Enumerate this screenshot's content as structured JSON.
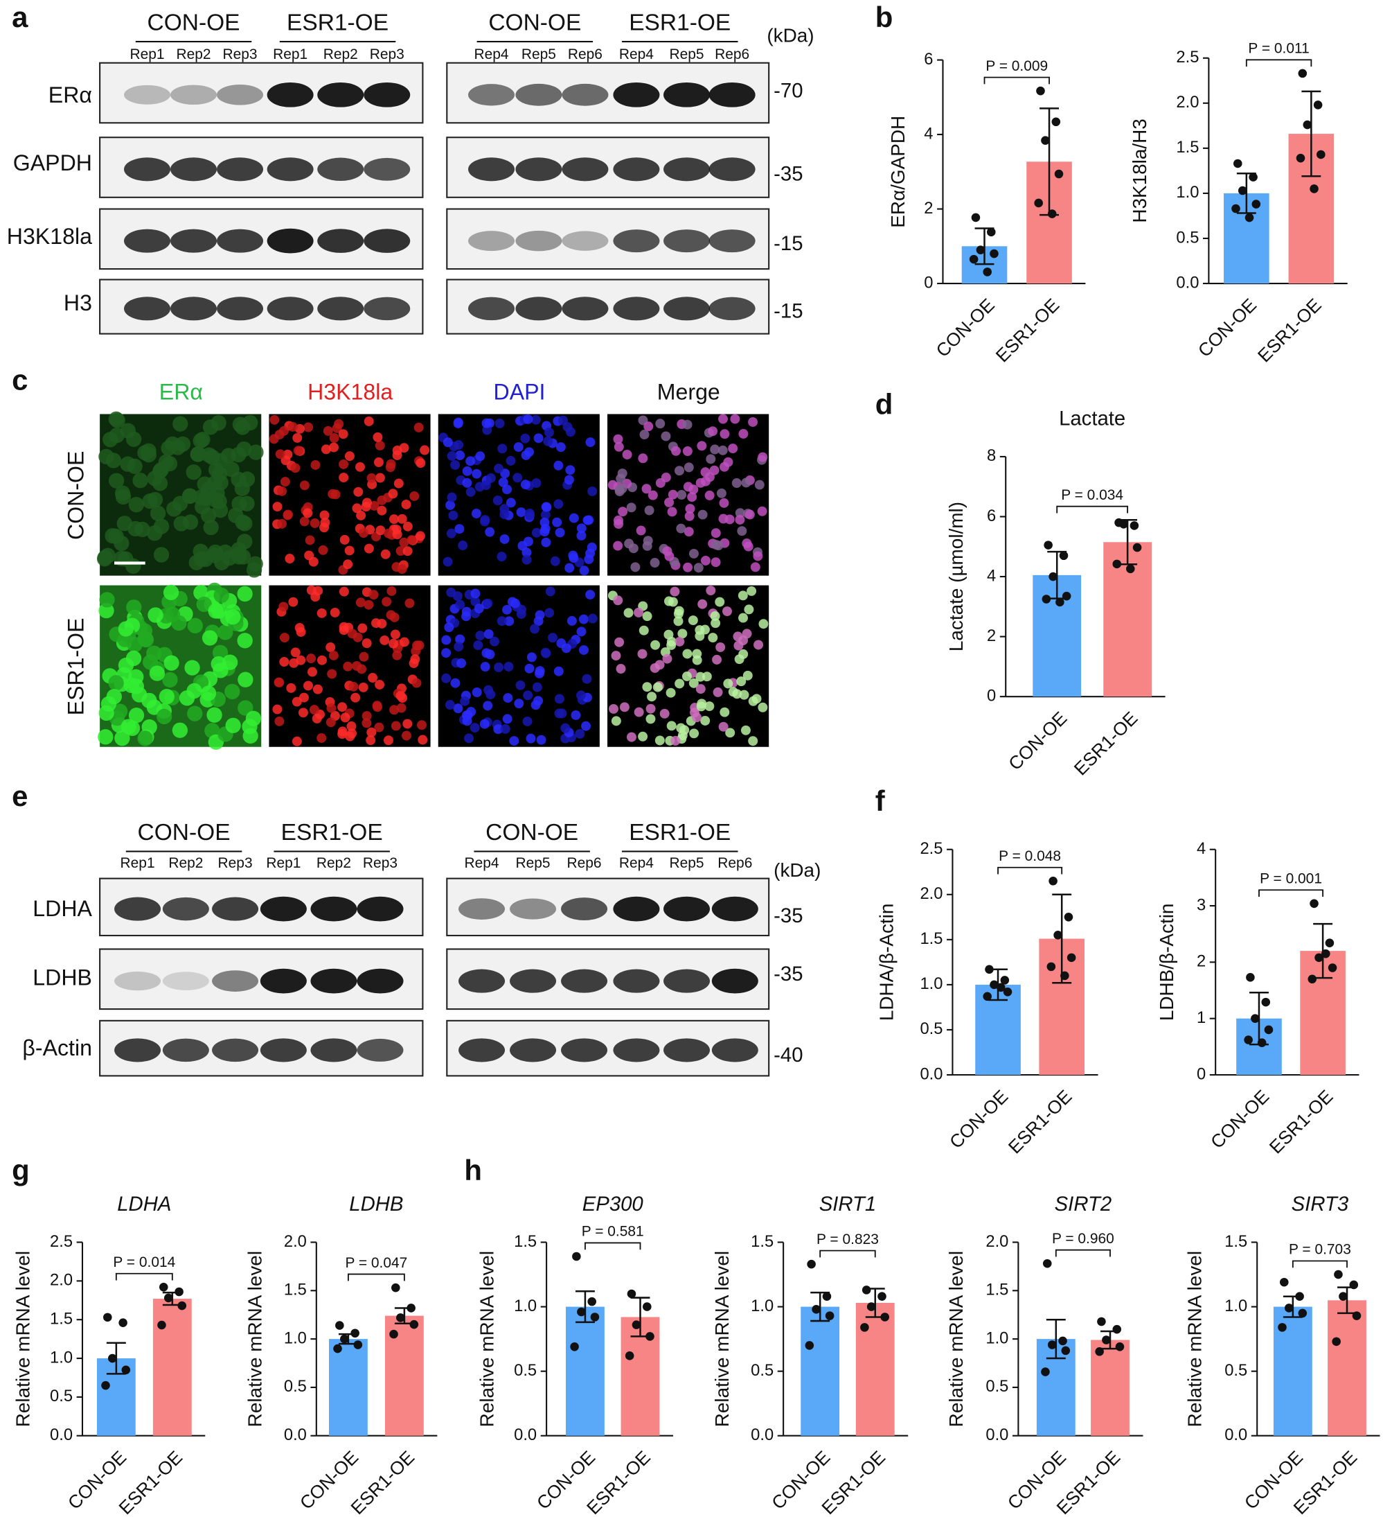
{
  "figure": {
    "panel_labels": [
      "a",
      "b",
      "c",
      "d",
      "e",
      "f",
      "g",
      "h"
    ],
    "blot_a": {
      "groups": [
        "CON-OE",
        "ESR1-OE",
        "CON-OE",
        "ESR1-OE"
      ],
      "lanes": [
        "Rep1",
        "Rep2",
        "Rep3",
        "Rep1",
        "Rep2",
        "Rep3",
        "Rep4",
        "Rep5",
        "Rep6",
        "Rep4",
        "Rep5",
        "Rep6"
      ],
      "unit": "(kDa)",
      "proteins": [
        "ERα",
        "GAPDH",
        "H3K18la",
        "H3"
      ],
      "markers": [
        "-70",
        "-35",
        "-15",
        "-15"
      ]
    },
    "blot_e": {
      "groups": [
        "CON-OE",
        "ESR1-OE",
        "CON-OE",
        "ESR1-OE"
      ],
      "lanes": [
        "Rep1",
        "Rep2",
        "Rep3",
        "Rep1",
        "Rep2",
        "Rep3",
        "Rep4",
        "Rep5",
        "Rep6",
        "Rep4",
        "Rep5",
        "Rep6"
      ],
      "unit": "(kDa)",
      "proteins": [
        "LDHA",
        "LDHB",
        "β-Actin"
      ],
      "markers": [
        "-35",
        "-35",
        "-40"
      ]
    },
    "if_panel": {
      "channels": [
        "ERα",
        "H3K18la",
        "DAPI",
        "Merge"
      ],
      "conditions": [
        "CON-OE",
        "ESR1-OE"
      ]
    }
  },
  "chart_data": [
    {
      "type": "bar",
      "ylabel": "ERα/GAPDH",
      "annotation": "P = 0.009",
      "categories": [
        "CON-OE",
        "ESR1-OE"
      ],
      "colors": [
        "#5aa8f8",
        "#f78585"
      ],
      "values": [
        1.0,
        3.27
      ],
      "errors": [
        0.48,
        1.43
      ],
      "points": [
        [
          1.77,
          1.38,
          0.9,
          0.8,
          0.65,
          0.31
        ],
        [
          5.17,
          4.34,
          3.84,
          2.94,
          2.16,
          1.87
        ]
      ],
      "ylim": [
        0,
        6
      ],
      "yticks": [
        0,
        2,
        4,
        6
      ]
    },
    {
      "type": "bar",
      "ylabel": "H3K18la/H3",
      "annotation": "P = 0.011",
      "categories": [
        "CON-OE",
        "ESR1-OE"
      ],
      "colors": [
        "#5aa8f8",
        "#f78585"
      ],
      "values": [
        1.0,
        1.66
      ],
      "errors": [
        0.22,
        0.47
      ],
      "points": [
        [
          1.33,
          1.18,
          1.03,
          0.88,
          0.83,
          0.73
        ],
        [
          2.33,
          1.98,
          1.76,
          1.43,
          1.39,
          1.05
        ]
      ],
      "ylim": [
        0,
        2.5
      ],
      "yticks": [
        {
          "value": 0,
          "label": "0.0"
        },
        0.5,
        {
          "value": 1,
          "label": "1.0"
        },
        1.5,
        {
          "value": 2,
          "label": "2.0"
        },
        2.5
      ]
    },
    {
      "type": "bar",
      "title": "Lactate",
      "ylabel": "Lactate (µmol/ml)",
      "annotation": "P = 0.034",
      "categories": [
        "CON-OE",
        "ESR1-OE"
      ],
      "colors": [
        "#5aa8f8",
        "#f78585"
      ],
      "values": [
        4.05,
        5.15
      ],
      "errors": [
        0.78,
        0.74
      ],
      "points": [
        [
          5.05,
          4.7,
          4.0,
          3.35,
          3.25,
          3.15
        ],
        [
          5.8,
          5.7,
          5.75,
          4.97,
          4.42,
          4.26
        ]
      ],
      "ylim": [
        0,
        8
      ],
      "yticks": [
        0,
        2,
        4,
        6,
        8
      ]
    },
    {
      "type": "bar",
      "ylabel": "LDHA/β-Actin",
      "annotation": "P = 0.048",
      "categories": [
        "CON-OE",
        "ESR1-OE"
      ],
      "colors": [
        "#5aa8f8",
        "#f78585"
      ],
      "values": [
        1.0,
        1.51
      ],
      "errors": [
        0.17,
        0.49
      ],
      "points": [
        [
          1.17,
          1.05,
          1.0,
          0.92,
          0.87,
          0.97
        ],
        [
          2.15,
          1.75,
          1.55,
          1.3,
          1.2,
          1.1
        ]
      ],
      "ylim": [
        0,
        2.5
      ],
      "yticks": [
        {
          "value": 0,
          "label": "0.0"
        },
        0.5,
        {
          "value": 1,
          "label": "1.0"
        },
        1.5,
        {
          "value": 2,
          "label": "2.0"
        },
        2.5
      ]
    },
    {
      "type": "bar",
      "ylabel": "LDHB/β-Actin",
      "annotation": "P = 0.001",
      "categories": [
        "CON-OE",
        "ESR1-OE"
      ],
      "colors": [
        "#5aa8f8",
        "#f78585"
      ],
      "values": [
        1.0,
        2.2
      ],
      "errors": [
        0.46,
        0.48
      ],
      "points": [
        [
          1.73,
          1.29,
          1.0,
          0.8,
          0.62,
          0.57
        ],
        [
          3.04,
          2.34,
          2.08,
          1.9,
          1.7,
          2.15
        ]
      ],
      "ylim": [
        0,
        4
      ],
      "yticks": [
        0,
        1,
        2,
        3,
        4
      ]
    },
    {
      "type": "bar",
      "title": "LDHA",
      "title_style": "italic",
      "ylabel": "Relative mRNA level",
      "annotation": "P = 0.014",
      "categories": [
        "CON-OE",
        "ESR1-OE"
      ],
      "colors": [
        "#5aa8f8",
        "#f78585"
      ],
      "values": [
        1.0,
        1.77
      ],
      "errors": [
        0.2,
        0.08
      ],
      "points": [
        [
          1.53,
          1.46,
          1.0,
          0.85,
          0.65
        ],
        [
          1.92,
          1.86,
          1.78,
          1.68,
          1.43
        ]
      ],
      "ylim": [
        0,
        2.5
      ],
      "yticks": [
        {
          "value": 0,
          "label": "0.0"
        },
        0.5,
        {
          "value": 1,
          "label": "1.0"
        },
        1.5,
        {
          "value": 2,
          "label": "2.0"
        },
        2.5
      ]
    },
    {
      "type": "bar",
      "title": "LDHB",
      "title_style": "italic",
      "ylabel": "Relative mRNA level",
      "annotation": "P = 0.047",
      "categories": [
        "CON-OE",
        "ESR1-OE"
      ],
      "colors": [
        "#5aa8f8",
        "#f78585"
      ],
      "values": [
        1.0,
        1.24
      ],
      "errors": [
        0.05,
        0.08
      ],
      "points": [
        [
          1.14,
          1.06,
          1.0,
          0.94,
          0.9
        ],
        [
          1.53,
          1.32,
          1.22,
          1.15,
          1.05
        ]
      ],
      "ylim": [
        0,
        2
      ],
      "yticks": [
        {
          "value": 0,
          "label": "0.0"
        },
        0.5,
        {
          "value": 1,
          "label": "1.0"
        },
        1.5,
        {
          "value": 2,
          "label": "2.0"
        }
      ]
    },
    {
      "type": "bar",
      "title": "EP300",
      "title_style": "italic",
      "ylabel": "Relative mRNA level",
      "annotation": "P = 0.581",
      "categories": [
        "CON-OE",
        "ESR1-OE"
      ],
      "colors": [
        "#5aa8f8",
        "#f78585"
      ],
      "values": [
        1.0,
        0.92
      ],
      "errors": [
        0.12,
        0.15
      ],
      "points": [
        [
          1.39,
          1.04,
          0.96,
          0.92,
          0.69
        ],
        [
          1.1,
          1.0,
          0.86,
          0.77,
          0.62
        ]
      ],
      "ylim": [
        0,
        1.5
      ],
      "yticks": [
        {
          "value": 0,
          "label": "0.0"
        },
        0.5,
        {
          "value": 1,
          "label": "1.0"
        },
        1.5
      ]
    },
    {
      "type": "bar",
      "title": "SIRT1",
      "title_style": "italic",
      "ylabel": "Relative mRNA level",
      "annotation": "P = 0.823",
      "categories": [
        "CON-OE",
        "ESR1-OE"
      ],
      "colors": [
        "#5aa8f8",
        "#f78585"
      ],
      "values": [
        1.0,
        1.03
      ],
      "errors": [
        0.11,
        0.11
      ],
      "points": [
        [
          1.33,
          1.08,
          0.98,
          0.93,
          0.7
        ],
        [
          1.13,
          1.08,
          1.0,
          0.92,
          0.84
        ]
      ],
      "ylim": [
        0,
        1.5
      ],
      "yticks": [
        {
          "value": 0,
          "label": "0.0"
        },
        0.5,
        {
          "value": 1,
          "label": "1.0"
        },
        1.5
      ]
    },
    {
      "type": "bar",
      "title": "SIRT2",
      "title_style": "italic",
      "ylabel": "Relative mRNA level",
      "annotation": "P = 0.960",
      "categories": [
        "CON-OE",
        "ESR1-OE"
      ],
      "colors": [
        "#5aa8f8",
        "#f78585"
      ],
      "values": [
        1.0,
        0.99
      ],
      "errors": [
        0.2,
        0.09
      ],
      "points": [
        [
          1.78,
          0.98,
          0.94,
          0.88,
          0.66
        ],
        [
          1.18,
          1.1,
          0.99,
          0.92,
          0.87
        ]
      ],
      "ylim": [
        0,
        2
      ],
      "yticks": [
        {
          "value": 0,
          "label": "0.0"
        },
        0.5,
        {
          "value": 1,
          "label": "1.0"
        },
        1.5,
        {
          "value": 2,
          "label": "2.0"
        }
      ]
    },
    {
      "type": "bar",
      "title": "SIRT3",
      "title_style": "italic",
      "ylabel": "Relative mRNA level",
      "annotation": "P = 0.703",
      "categories": [
        "CON-OE",
        "ESR1-OE"
      ],
      "colors": [
        "#5aa8f8",
        "#f78585"
      ],
      "values": [
        1.0,
        1.05
      ],
      "errors": [
        0.08,
        0.1
      ],
      "points": [
        [
          1.19,
          1.08,
          0.99,
          0.95,
          0.84
        ],
        [
          1.25,
          1.17,
          1.08,
          0.93,
          0.73
        ]
      ],
      "ylim": [
        0,
        1.5
      ],
      "yticks": [
        {
          "value": 0,
          "label": "0.0"
        },
        0.5,
        {
          "value": 1,
          "label": "1.0"
        },
        1.5
      ]
    }
  ]
}
